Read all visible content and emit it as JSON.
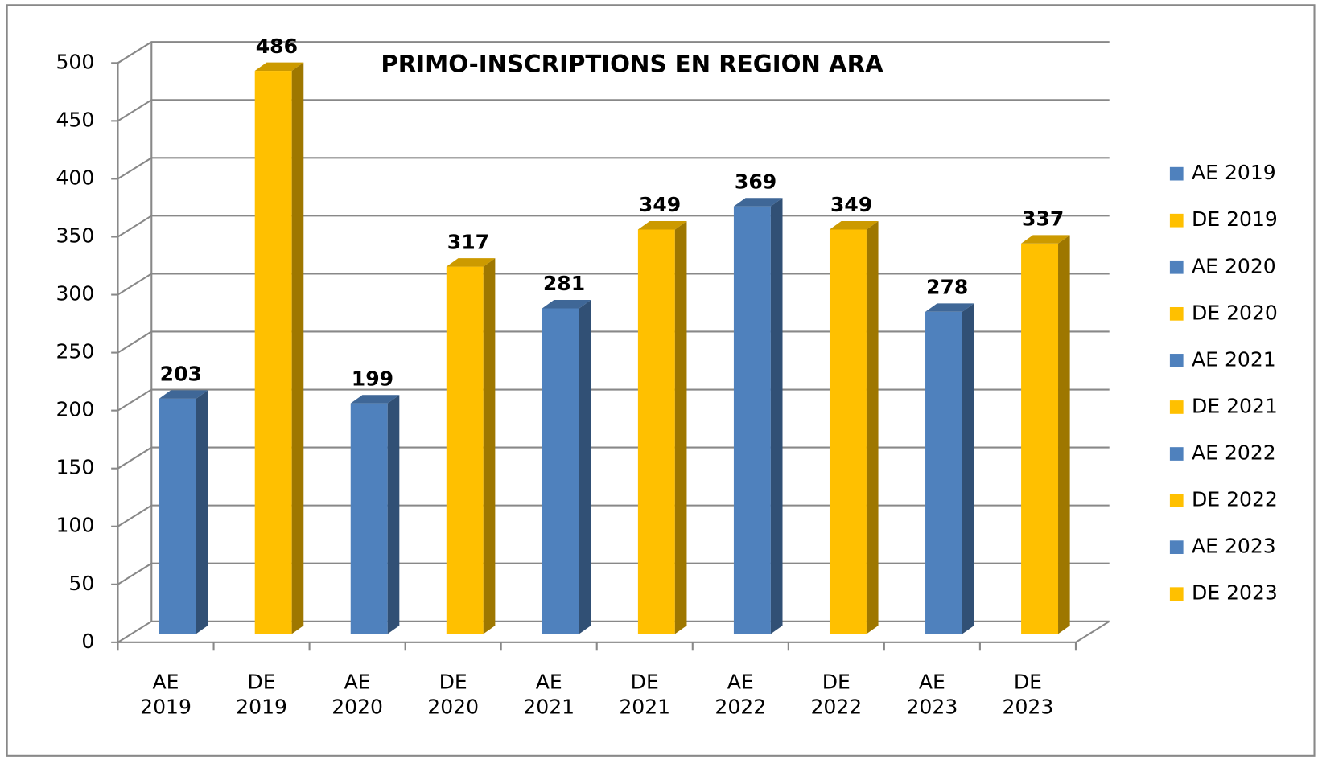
{
  "chart_data": {
    "type": "bar3d",
    "title": "PRIMO-INSCRIPTIONS EN REGION ARA",
    "categories": [
      "AE 2019",
      "DE 2019",
      "AE 2020",
      "DE 2020",
      "AE 2021",
      "DE 2021",
      "AE 2022",
      "DE 2022",
      "AE 2023",
      "DE 2023"
    ],
    "values": [
      203,
      486,
      199,
      317,
      281,
      349,
      369,
      349,
      278,
      337
    ],
    "colors": [
      "#4f81bd",
      "#ffc000",
      "#4f81bd",
      "#ffc000",
      "#4f81bd",
      "#ffc000",
      "#4f81bd",
      "#ffc000",
      "#4f81bd",
      "#ffc000"
    ],
    "ylim": [
      0,
      500
    ],
    "yticks": [
      0,
      50,
      100,
      150,
      200,
      250,
      300,
      350,
      400,
      450,
      500
    ],
    "grid": true,
    "legend": "right"
  }
}
